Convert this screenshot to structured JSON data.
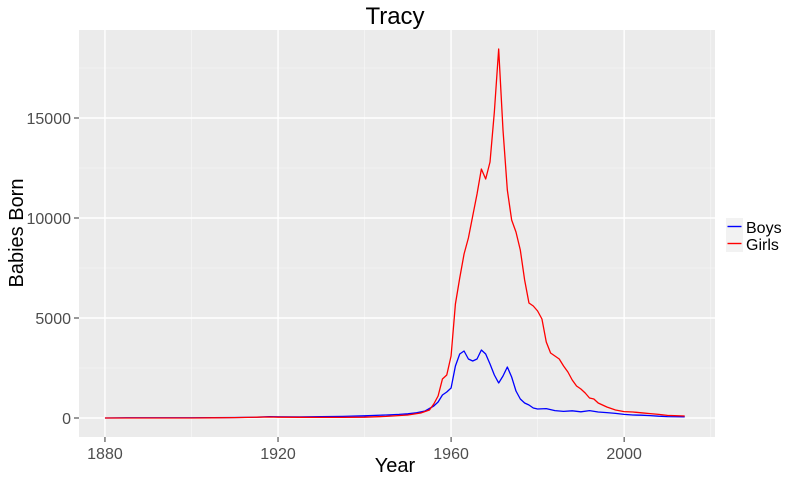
{
  "chart_data": {
    "type": "line",
    "title": "Tracy",
    "xlabel": "Year",
    "ylabel": "Babies Born",
    "xlim": [
      1874,
      2021
    ],
    "ylim": [
      -950,
      19400
    ],
    "x_ticks": [
      1880,
      1920,
      1960,
      2000
    ],
    "x_tick_labels": [
      "1880",
      "1920",
      "1960",
      "2000"
    ],
    "y_ticks": [
      0,
      5000,
      10000,
      15000
    ],
    "y_tick_labels": [
      "0",
      "5000",
      "10000",
      "15000"
    ],
    "grid": true,
    "legend_position": "right",
    "colors": {
      "panel": "#ebebeb",
      "grid_major": "#ffffff",
      "grid_minor": "#f5f5f5",
      "axis_text": "#4d4d4d"
    },
    "series": [
      {
        "name": "Boys",
        "color": "#0000ff",
        "points": [
          [
            1880,
            0
          ],
          [
            1885,
            10
          ],
          [
            1890,
            10
          ],
          [
            1895,
            10
          ],
          [
            1900,
            10
          ],
          [
            1905,
            15
          ],
          [
            1910,
            25
          ],
          [
            1915,
            40
          ],
          [
            1918,
            70
          ],
          [
            1920,
            60
          ],
          [
            1925,
            55
          ],
          [
            1930,
            65
          ],
          [
            1935,
            80
          ],
          [
            1940,
            110
          ],
          [
            1945,
            150
          ],
          [
            1948,
            180
          ],
          [
            1950,
            210
          ],
          [
            1952,
            260
          ],
          [
            1954,
            350
          ],
          [
            1956,
            600
          ],
          [
            1957,
            800
          ],
          [
            1958,
            1150
          ],
          [
            1959,
            1300
          ],
          [
            1960,
            1500
          ],
          [
            1961,
            2600
          ],
          [
            1962,
            3200
          ],
          [
            1963,
            3350
          ],
          [
            1964,
            2950
          ],
          [
            1965,
            2850
          ],
          [
            1966,
            2950
          ],
          [
            1967,
            3400
          ],
          [
            1968,
            3200
          ],
          [
            1969,
            2700
          ],
          [
            1970,
            2150
          ],
          [
            1971,
            1750
          ],
          [
            1972,
            2100
          ],
          [
            1973,
            2550
          ],
          [
            1974,
            2050
          ],
          [
            1975,
            1350
          ],
          [
            1976,
            950
          ],
          [
            1977,
            750
          ],
          [
            1978,
            650
          ],
          [
            1979,
            500
          ],
          [
            1980,
            450
          ],
          [
            1982,
            470
          ],
          [
            1984,
            370
          ],
          [
            1986,
            330
          ],
          [
            1988,
            360
          ],
          [
            1990,
            310
          ],
          [
            1992,
            370
          ],
          [
            1994,
            300
          ],
          [
            1996,
            270
          ],
          [
            1998,
            230
          ],
          [
            2000,
            180
          ],
          [
            2002,
            150
          ],
          [
            2004,
            140
          ],
          [
            2006,
            120
          ],
          [
            2008,
            90
          ],
          [
            2010,
            70
          ],
          [
            2014,
            60
          ]
        ]
      },
      {
        "name": "Girls",
        "color": "#ff0000",
        "points": [
          [
            1880,
            0
          ],
          [
            1885,
            0
          ],
          [
            1890,
            0
          ],
          [
            1895,
            0
          ],
          [
            1900,
            0
          ],
          [
            1905,
            10
          ],
          [
            1910,
            20
          ],
          [
            1915,
            40
          ],
          [
            1918,
            50
          ],
          [
            1920,
            40
          ],
          [
            1925,
            35
          ],
          [
            1930,
            30
          ],
          [
            1935,
            30
          ],
          [
            1940,
            40
          ],
          [
            1945,
            80
          ],
          [
            1950,
            150
          ],
          [
            1953,
            250
          ],
          [
            1955,
            400
          ],
          [
            1956,
            700
          ],
          [
            1957,
            1100
          ],
          [
            1958,
            1950
          ],
          [
            1959,
            2150
          ],
          [
            1960,
            3100
          ],
          [
            1961,
            5700
          ],
          [
            1962,
            7000
          ],
          [
            1963,
            8200
          ],
          [
            1964,
            9000
          ],
          [
            1965,
            10100
          ],
          [
            1966,
            11200
          ],
          [
            1967,
            12450
          ],
          [
            1968,
            11950
          ],
          [
            1969,
            12800
          ],
          [
            1970,
            15300
          ],
          [
            1971,
            18450
          ],
          [
            1972,
            14400
          ],
          [
            1973,
            11400
          ],
          [
            1974,
            9900
          ],
          [
            1975,
            9300
          ],
          [
            1976,
            8400
          ],
          [
            1977,
            6900
          ],
          [
            1978,
            5750
          ],
          [
            1979,
            5600
          ],
          [
            1980,
            5350
          ],
          [
            1981,
            4950
          ],
          [
            1982,
            3800
          ],
          [
            1983,
            3250
          ],
          [
            1984,
            3100
          ],
          [
            1985,
            2950
          ],
          [
            1986,
            2600
          ],
          [
            1987,
            2300
          ],
          [
            1988,
            1900
          ],
          [
            1989,
            1600
          ],
          [
            1990,
            1450
          ],
          [
            1991,
            1250
          ],
          [
            1992,
            1000
          ],
          [
            1993,
            950
          ],
          [
            1994,
            750
          ],
          [
            1996,
            550
          ],
          [
            1998,
            400
          ],
          [
            2000,
            320
          ],
          [
            2002,
            300
          ],
          [
            2004,
            260
          ],
          [
            2006,
            220
          ],
          [
            2008,
            180
          ],
          [
            2010,
            130
          ],
          [
            2014,
            100
          ]
        ]
      }
    ]
  }
}
